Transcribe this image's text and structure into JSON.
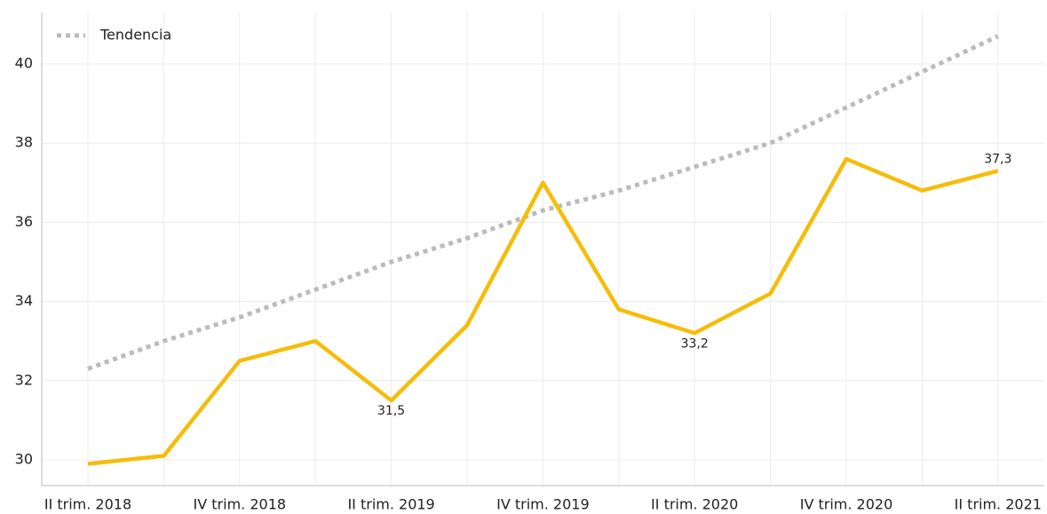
{
  "chart_data": {
    "type": "line",
    "categories": [
      "II trim. 2018",
      null,
      "IV trim. 2018",
      null,
      "II trim. 2019",
      null,
      "IV trim. 2019",
      null,
      "II trim. 2020",
      null,
      "IV trim. 2020",
      null,
      "II trim. 2021"
    ],
    "series": [
      {
        "color": "#f5bd0a",
        "values": [
          29.9,
          30.1,
          32.5,
          33.0,
          31.5,
          33.4,
          37.0,
          33.8,
          33.2,
          34.2,
          37.6,
          36.8,
          37.3
        ],
        "value_labels": [
          null,
          null,
          null,
          null,
          "31,5",
          null,
          null,
          null,
          "33,2",
          null,
          null,
          null,
          "37,3"
        ]
      },
      {
        "name": "Tendencia",
        "color": "#bbbbbb",
        "dash": "dotted",
        "values": [
          32.3,
          33.0,
          33.6,
          34.3,
          35.0,
          35.6,
          36.3,
          36.8,
          37.4,
          38.0,
          38.9,
          39.8,
          40.7
        ]
      }
    ],
    "ylim": [
      29.35,
      41.3
    ],
    "yticks": [
      30,
      32,
      34,
      36,
      38,
      40
    ],
    "grid": true,
    "legend": "upper left"
  }
}
